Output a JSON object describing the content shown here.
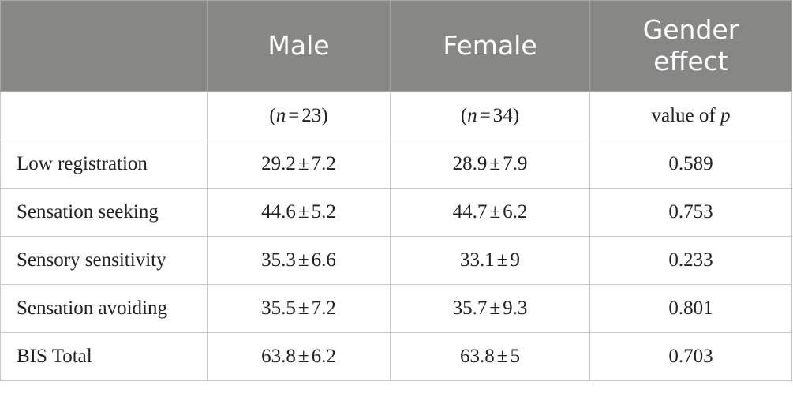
{
  "header": [
    "",
    "Male",
    "Female",
    "Gender effect"
  ],
  "subheader": {
    "male": {
      "open": "(",
      "var": "n",
      "eq": "=",
      "num": "23",
      "close": ")"
    },
    "female": {
      "open": "(",
      "var": "n",
      "eq": "=",
      "num": "34",
      "close": ")"
    },
    "effect": {
      "prefix": "value of",
      "var": "p"
    }
  },
  "rows": [
    {
      "label": "Low registration",
      "male": [
        "29.2",
        "±",
        "7.2"
      ],
      "female": [
        "28.9",
        "±",
        "7.9"
      ],
      "p": "0.589"
    },
    {
      "label": "Sensation seeking",
      "male": [
        "44.6",
        "±",
        "5.2"
      ],
      "female": [
        "44.7",
        "±",
        "6.2"
      ],
      "p": "0.753"
    },
    {
      "label": "Sensory sensitivity",
      "male": [
        "35.3",
        "±",
        "6.6"
      ],
      "female": [
        "33.1",
        "±",
        "9"
      ],
      "p": "0.233"
    },
    {
      "label": "Sensation avoiding",
      "male": [
        "35.5",
        "±",
        "7.2"
      ],
      "female": [
        "35.7",
        "±",
        "9.3"
      ],
      "p": "0.801"
    },
    {
      "label": "BIS Total",
      "male": [
        "63.8",
        "±",
        "6.2"
      ],
      "female": [
        "63.8",
        "±",
        "5"
      ],
      "p": "0.703"
    }
  ]
}
